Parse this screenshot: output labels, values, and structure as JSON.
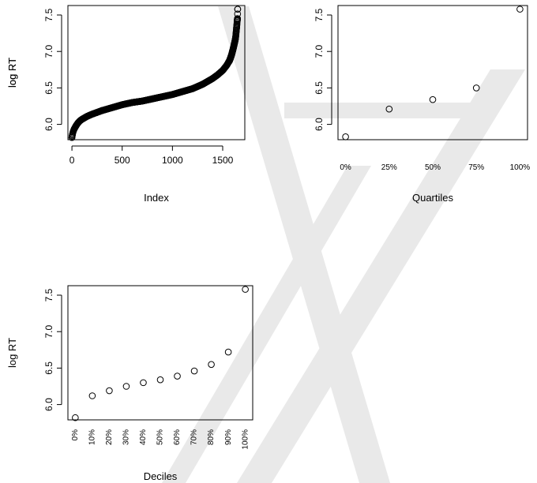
{
  "chart_data": [
    {
      "id": "index",
      "type": "scatter",
      "xlabel": "Index",
      "ylabel": "log RT",
      "xlim": [
        -40,
        1720
      ],
      "ylim": [
        5.79,
        7.63
      ],
      "xticks": [
        {
          "value": 0,
          "label": "0"
        },
        {
          "value": 500,
          "label": "500"
        },
        {
          "value": 1000,
          "label": "1000"
        },
        {
          "value": 1500,
          "label": "1500"
        }
      ],
      "yticks": [
        {
          "value": 6.0,
          "label": "6.0"
        },
        {
          "value": 6.5,
          "label": "6.5"
        },
        {
          "value": 7.0,
          "label": "7.0"
        },
        {
          "value": 7.5,
          "label": "7.5"
        }
      ],
      "n_points": 1650,
      "curve": {
        "x": [
          0,
          5,
          10,
          20,
          40,
          60,
          80,
          100,
          150,
          200,
          300,
          400,
          500,
          600,
          700,
          800,
          900,
          1000,
          1100,
          1200,
          1300,
          1350,
          1400,
          1450,
          1500,
          1540,
          1570,
          1590,
          1605,
          1615,
          1625,
          1630,
          1635,
          1640,
          1644,
          1647,
          1649
        ],
        "y": [
          5.82,
          5.86,
          5.89,
          5.93,
          5.98,
          6.02,
          6.05,
          6.07,
          6.11,
          6.14,
          6.19,
          6.23,
          6.27,
          6.3,
          6.32,
          6.35,
          6.38,
          6.41,
          6.45,
          6.49,
          6.55,
          6.59,
          6.63,
          6.68,
          6.74,
          6.81,
          6.88,
          6.96,
          7.04,
          7.1,
          7.16,
          7.21,
          7.28,
          7.35,
          7.42,
          7.45,
          7.58
        ]
      }
    },
    {
      "id": "quartiles",
      "type": "scatter",
      "xlabel": "Quartiles",
      "ylabel": "log RT",
      "ylim": [
        5.79,
        7.63
      ],
      "categories": [
        "0%",
        "25%",
        "50%",
        "75%",
        "100%"
      ],
      "values": [
        5.83,
        6.21,
        6.34,
        6.5,
        7.58
      ],
      "yticks": [
        {
          "value": 6.0,
          "label": "6.0"
        },
        {
          "value": 6.5,
          "label": "6.5"
        },
        {
          "value": 7.0,
          "label": "7.0"
        },
        {
          "value": 7.5,
          "label": "7.5"
        }
      ]
    },
    {
      "id": "deciles",
      "type": "scatter",
      "xlabel": "Deciles",
      "ylabel": "log RT",
      "ylim": [
        5.79,
        7.63
      ],
      "categories": [
        "0%",
        "10%",
        "20%",
        "30%",
        "40%",
        "50%",
        "60%",
        "70%",
        "80%",
        "90%",
        "100%"
      ],
      "values": [
        5.82,
        6.12,
        6.19,
        6.25,
        6.3,
        6.34,
        6.39,
        6.46,
        6.55,
        6.72,
        7.58
      ],
      "yticks": [
        {
          "value": 6.0,
          "label": "6.0"
        },
        {
          "value": 6.5,
          "label": "6.5"
        },
        {
          "value": 7.0,
          "label": "7.0"
        },
        {
          "value": 7.5,
          "label": "7.5"
        }
      ]
    }
  ],
  "colors": {
    "points": "#000000",
    "frame": "#000000",
    "watermark": "#e9e9e9",
    "background": "#ffffff"
  }
}
